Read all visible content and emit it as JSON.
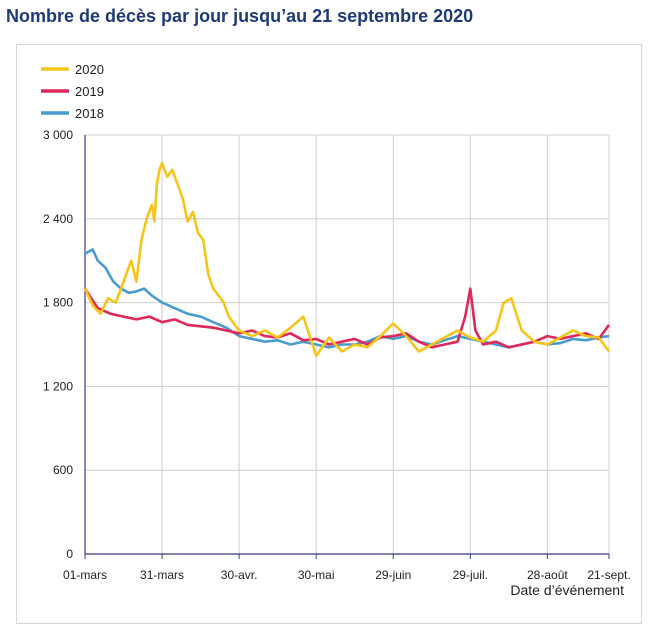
{
  "title": "Nombre de décès par jour jusqu’au 21 septembre 2020",
  "chart_data": {
    "type": "line",
    "xlabel": "Date d’événement",
    "ylabel": "",
    "ylim": [
      0,
      3000
    ],
    "x_range_days": [
      0,
      204
    ],
    "yticks": [
      {
        "value": 0,
        "label": "0"
      },
      {
        "value": 600,
        "label": "600"
      },
      {
        "value": 1200,
        "label": "1 200"
      },
      {
        "value": 1800,
        "label": "1 800"
      },
      {
        "value": 2400,
        "label": "2 400"
      },
      {
        "value": 3000,
        "label": "3 000"
      }
    ],
    "xticks": [
      {
        "day": 0,
        "label": "01-mars"
      },
      {
        "day": 30,
        "label": "31-mars"
      },
      {
        "day": 60,
        "label": "30-avr."
      },
      {
        "day": 90,
        "label": "30-mai"
      },
      {
        "day": 120,
        "label": "29-juin"
      },
      {
        "day": 150,
        "label": "29-juil."
      },
      {
        "day": 180,
        "label": "28-août"
      },
      {
        "day": 204,
        "label": "21-sept."
      }
    ],
    "grid": true,
    "legend_position": "top-left",
    "series": [
      {
        "name": "2020",
        "color": "#f5c518",
        "points": [
          [
            0,
            1900
          ],
          [
            3,
            1780
          ],
          [
            6,
            1720
          ],
          [
            9,
            1830
          ],
          [
            12,
            1800
          ],
          [
            14,
            1900
          ],
          [
            16,
            2000
          ],
          [
            18,
            2100
          ],
          [
            20,
            1950
          ],
          [
            22,
            2250
          ],
          [
            24,
            2400
          ],
          [
            26,
            2500
          ],
          [
            27,
            2380
          ],
          [
            28,
            2650
          ],
          [
            29,
            2750
          ],
          [
            30,
            2800
          ],
          [
            32,
            2700
          ],
          [
            34,
            2750
          ],
          [
            36,
            2650
          ],
          [
            38,
            2550
          ],
          [
            40,
            2380
          ],
          [
            42,
            2450
          ],
          [
            44,
            2300
          ],
          [
            46,
            2250
          ],
          [
            48,
            2000
          ],
          [
            50,
            1900
          ],
          [
            52,
            1850
          ],
          [
            54,
            1800
          ],
          [
            56,
            1700
          ],
          [
            58,
            1650
          ],
          [
            60,
            1600
          ],
          [
            65,
            1560
          ],
          [
            70,
            1600
          ],
          [
            75,
            1550
          ],
          [
            80,
            1620
          ],
          [
            85,
            1700
          ],
          [
            90,
            1420
          ],
          [
            95,
            1550
          ],
          [
            100,
            1450
          ],
          [
            105,
            1500
          ],
          [
            110,
            1480
          ],
          [
            115,
            1560
          ],
          [
            120,
            1650
          ],
          [
            125,
            1560
          ],
          [
            130,
            1450
          ],
          [
            135,
            1500
          ],
          [
            140,
            1550
          ],
          [
            145,
            1600
          ],
          [
            150,
            1550
          ],
          [
            155,
            1520
          ],
          [
            160,
            1600
          ],
          [
            163,
            1800
          ],
          [
            166,
            1830
          ],
          [
            170,
            1600
          ],
          [
            175,
            1520
          ],
          [
            180,
            1500
          ],
          [
            185,
            1550
          ],
          [
            190,
            1600
          ],
          [
            195,
            1560
          ],
          [
            200,
            1550
          ],
          [
            204,
            1450
          ]
        ]
      },
      {
        "name": "2019",
        "color": "#e0285a",
        "points": [
          [
            0,
            1900
          ],
          [
            5,
            1760
          ],
          [
            10,
            1720
          ],
          [
            15,
            1700
          ],
          [
            20,
            1680
          ],
          [
            25,
            1700
          ],
          [
            30,
            1660
          ],
          [
            35,
            1680
          ],
          [
            40,
            1640
          ],
          [
            45,
            1630
          ],
          [
            50,
            1620
          ],
          [
            55,
            1600
          ],
          [
            60,
            1580
          ],
          [
            65,
            1600
          ],
          [
            70,
            1560
          ],
          [
            75,
            1550
          ],
          [
            80,
            1580
          ],
          [
            85,
            1530
          ],
          [
            90,
            1540
          ],
          [
            95,
            1500
          ],
          [
            100,
            1520
          ],
          [
            105,
            1540
          ],
          [
            110,
            1500
          ],
          [
            115,
            1550
          ],
          [
            120,
            1560
          ],
          [
            125,
            1580
          ],
          [
            130,
            1520
          ],
          [
            135,
            1480
          ],
          [
            140,
            1500
          ],
          [
            145,
            1520
          ],
          [
            148,
            1700
          ],
          [
            150,
            1900
          ],
          [
            152,
            1600
          ],
          [
            155,
            1500
          ],
          [
            160,
            1520
          ],
          [
            165,
            1480
          ],
          [
            170,
            1500
          ],
          [
            175,
            1520
          ],
          [
            180,
            1560
          ],
          [
            185,
            1540
          ],
          [
            190,
            1560
          ],
          [
            195,
            1580
          ],
          [
            200,
            1540
          ],
          [
            204,
            1640
          ]
        ]
      },
      {
        "name": "2018",
        "color": "#4a9bd0",
        "points": [
          [
            0,
            2150
          ],
          [
            3,
            2180
          ],
          [
            5,
            2100
          ],
          [
            8,
            2050
          ],
          [
            11,
            1950
          ],
          [
            14,
            1900
          ],
          [
            17,
            1870
          ],
          [
            20,
            1880
          ],
          [
            23,
            1900
          ],
          [
            26,
            1850
          ],
          [
            30,
            1800
          ],
          [
            35,
            1760
          ],
          [
            40,
            1720
          ],
          [
            45,
            1700
          ],
          [
            50,
            1660
          ],
          [
            55,
            1620
          ],
          [
            60,
            1560
          ],
          [
            65,
            1540
          ],
          [
            70,
            1520
          ],
          [
            75,
            1530
          ],
          [
            80,
            1500
          ],
          [
            85,
            1520
          ],
          [
            90,
            1500
          ],
          [
            95,
            1480
          ],
          [
            100,
            1500
          ],
          [
            105,
            1500
          ],
          [
            110,
            1520
          ],
          [
            115,
            1560
          ],
          [
            120,
            1540
          ],
          [
            125,
            1560
          ],
          [
            130,
            1520
          ],
          [
            135,
            1500
          ],
          [
            140,
            1530
          ],
          [
            145,
            1560
          ],
          [
            150,
            1540
          ],
          [
            155,
            1520
          ],
          [
            160,
            1500
          ],
          [
            165,
            1480
          ],
          [
            170,
            1500
          ],
          [
            175,
            1520
          ],
          [
            180,
            1500
          ],
          [
            185,
            1510
          ],
          [
            190,
            1540
          ],
          [
            195,
            1530
          ],
          [
            200,
            1550
          ],
          [
            204,
            1560
          ]
        ]
      }
    ]
  }
}
